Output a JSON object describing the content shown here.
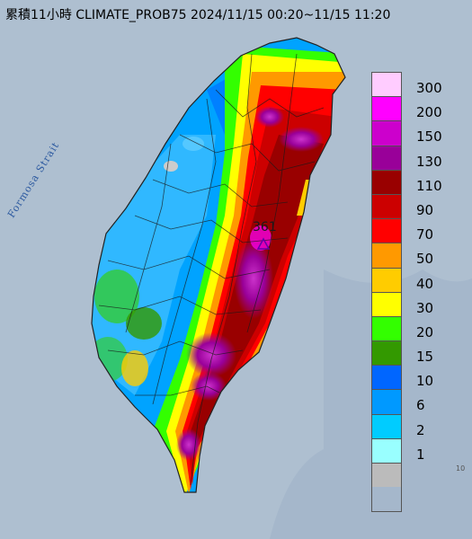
{
  "title": "累積11小時 CLIMATE_PROB75 2024/11/15 00:20~11/15 11:20",
  "strait_label": "Formosa Strait",
  "max_value_label": "361",
  "corner_label": "10",
  "legend": [
    {
      "label": "300",
      "color": "#ffccff"
    },
    {
      "label": "200",
      "color": "#ff00ff"
    },
    {
      "label": "150",
      "color": "#cc00cc"
    },
    {
      "label": "130",
      "color": "#990099"
    },
    {
      "label": "110",
      "color": "#990000"
    },
    {
      "label": "90",
      "color": "#cc0000"
    },
    {
      "label": "70",
      "color": "#ff0000"
    },
    {
      "label": "50",
      "color": "#ff9900"
    },
    {
      "label": "40",
      "color": "#ffcc00"
    },
    {
      "label": "30",
      "color": "#ffff00"
    },
    {
      "label": "20",
      "color": "#33ff00"
    },
    {
      "label": "15",
      "color": "#339900"
    },
    {
      "label": "10",
      "color": "#0066ff"
    },
    {
      "label": "6",
      "color": "#0099ff"
    },
    {
      "label": "2",
      "color": "#00ccff"
    },
    {
      "label": "1",
      "color": "#99ffff"
    },
    {
      "label": "",
      "color": "#bbbbbb"
    }
  ]
}
